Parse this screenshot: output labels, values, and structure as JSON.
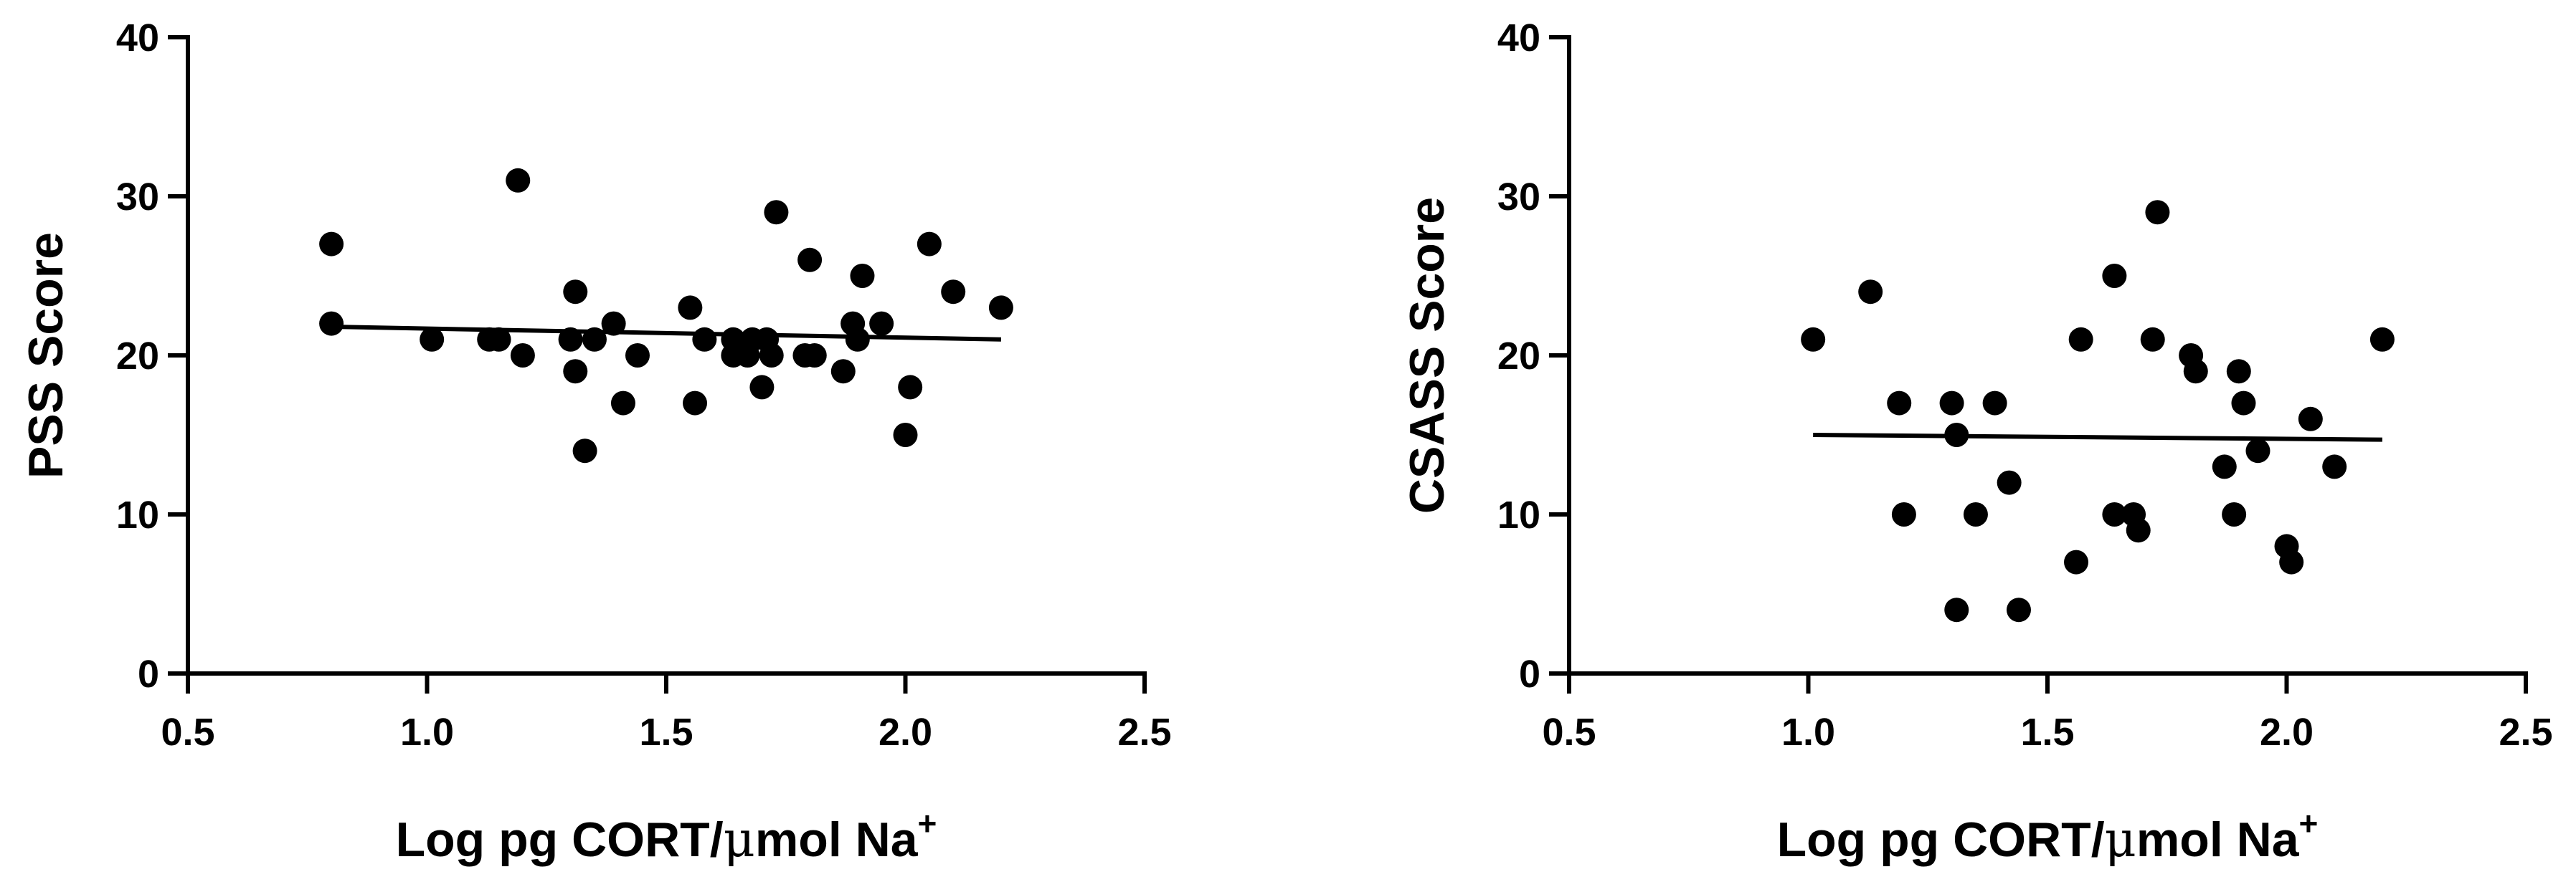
{
  "chart_data": [
    {
      "type": "scatter",
      "xlabel_main": "Log pg CORT/",
      "xlabel_mu": "μ",
      "xlabel_rest": "mol Na",
      "xlabel_sup": "+",
      "ylabel": "PSS Score",
      "xlim": [
        0.5,
        2.5
      ],
      "ylim": [
        0,
        40
      ],
      "x_ticks": [
        "0.5",
        "1.0",
        "1.5",
        "2.0",
        "2.5"
      ],
      "y_ticks": [
        "0",
        "10",
        "20",
        "30",
        "40"
      ],
      "grid": false,
      "points": [
        {
          "x": 0.8,
          "y": 27
        },
        {
          "x": 0.8,
          "y": 22
        },
        {
          "x": 1.01,
          "y": 21
        },
        {
          "x": 1.13,
          "y": 21
        },
        {
          "x": 1.15,
          "y": 21
        },
        {
          "x": 1.19,
          "y": 31
        },
        {
          "x": 1.2,
          "y": 20
        },
        {
          "x": 1.3,
          "y": 21
        },
        {
          "x": 1.31,
          "y": 24
        },
        {
          "x": 1.31,
          "y": 19
        },
        {
          "x": 1.33,
          "y": 14
        },
        {
          "x": 1.35,
          "y": 21
        },
        {
          "x": 1.39,
          "y": 22
        },
        {
          "x": 1.41,
          "y": 17
        },
        {
          "x": 1.44,
          "y": 20
        },
        {
          "x": 1.55,
          "y": 23
        },
        {
          "x": 1.56,
          "y": 17
        },
        {
          "x": 1.58,
          "y": 21
        },
        {
          "x": 1.64,
          "y": 21
        },
        {
          "x": 1.64,
          "y": 20
        },
        {
          "x": 1.67,
          "y": 20
        },
        {
          "x": 1.68,
          "y": 21
        },
        {
          "x": 1.7,
          "y": 18
        },
        {
          "x": 1.71,
          "y": 21
        },
        {
          "x": 1.72,
          "y": 20
        },
        {
          "x": 1.73,
          "y": 29
        },
        {
          "x": 1.79,
          "y": 20
        },
        {
          "x": 1.8,
          "y": 26
        },
        {
          "x": 1.81,
          "y": 20
        },
        {
          "x": 1.87,
          "y": 19
        },
        {
          "x": 1.89,
          "y": 22
        },
        {
          "x": 1.9,
          "y": 21
        },
        {
          "x": 1.91,
          "y": 25
        },
        {
          "x": 1.95,
          "y": 22
        },
        {
          "x": 2.0,
          "y": 15
        },
        {
          "x": 2.01,
          "y": 18
        },
        {
          "x": 2.05,
          "y": 27
        },
        {
          "x": 2.1,
          "y": 24
        },
        {
          "x": 2.2,
          "y": 23
        }
      ],
      "trendline": {
        "x": [
          0.8,
          2.2
        ],
        "y": [
          21.8,
          21.0
        ]
      }
    },
    {
      "type": "scatter",
      "xlabel_main": "Log pg CORT/",
      "xlabel_mu": "μ",
      "xlabel_rest": "mol Na",
      "xlabel_sup": "+",
      "ylabel": "CSASS Score",
      "xlim": [
        0.5,
        2.5
      ],
      "ylim": [
        0,
        40
      ],
      "x_ticks": [
        "0.5",
        "1.0",
        "1.5",
        "2.0",
        "2.5"
      ],
      "y_ticks": [
        "0",
        "10",
        "20",
        "30",
        "40"
      ],
      "grid": false,
      "points": [
        {
          "x": 1.01,
          "y": 21
        },
        {
          "x": 1.13,
          "y": 24
        },
        {
          "x": 1.19,
          "y": 17
        },
        {
          "x": 1.2,
          "y": 10
        },
        {
          "x": 1.3,
          "y": 17
        },
        {
          "x": 1.31,
          "y": 15
        },
        {
          "x": 1.31,
          "y": 4
        },
        {
          "x": 1.35,
          "y": 10
        },
        {
          "x": 1.39,
          "y": 17
        },
        {
          "x": 1.42,
          "y": 12
        },
        {
          "x": 1.44,
          "y": 4
        },
        {
          "x": 1.56,
          "y": 7
        },
        {
          "x": 1.57,
          "y": 21
        },
        {
          "x": 1.64,
          "y": 25
        },
        {
          "x": 1.64,
          "y": 10
        },
        {
          "x": 1.68,
          "y": 10
        },
        {
          "x": 1.69,
          "y": 9
        },
        {
          "x": 1.72,
          "y": 21
        },
        {
          "x": 1.73,
          "y": 29
        },
        {
          "x": 1.8,
          "y": 20
        },
        {
          "x": 1.81,
          "y": 19
        },
        {
          "x": 1.87,
          "y": 13
        },
        {
          "x": 1.89,
          "y": 10
        },
        {
          "x": 1.9,
          "y": 19
        },
        {
          "x": 1.91,
          "y": 17
        },
        {
          "x": 1.94,
          "y": 14
        },
        {
          "x": 2.0,
          "y": 8
        },
        {
          "x": 2.01,
          "y": 7
        },
        {
          "x": 2.05,
          "y": 16
        },
        {
          "x": 2.1,
          "y": 13
        },
        {
          "x": 2.2,
          "y": 21
        }
      ],
      "trendline": {
        "x": [
          1.01,
          2.2
        ],
        "y": [
          15.0,
          14.7
        ]
      }
    }
  ]
}
